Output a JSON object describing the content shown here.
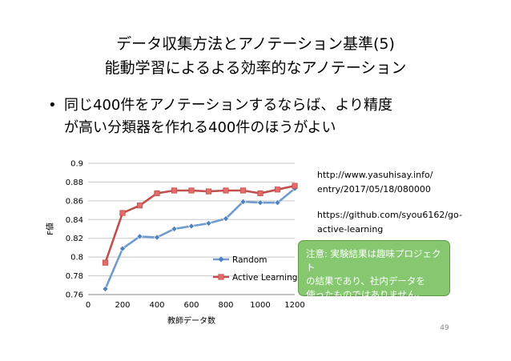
{
  "slide": {
    "title_line1": "データ収集方法とアノテーション基準(5)",
    "title_line2": "能動学習によるよる効率的なアノテーション",
    "bullet_symbol": "•",
    "bullet_line1": "同じ400件をアノテーションするならば、より精度",
    "bullet_line2": "が高い分類器を作れる400件のほうがよい",
    "link1_line1": "http://www.yasuhisay.info/",
    "link1_line2": "entry/2017/05/18/080000",
    "link2_line1": "https://github.com/syou6162/go-",
    "link2_line2": "active-learning",
    "note_line1": "注意: 実験結果は趣味プロジェクト",
    "note_line2": "の結果であり、社内データを",
    "note_line3": "使ったものではありません。",
    "page_number": "49"
  },
  "colors": {
    "random": "#6f9bd1",
    "random_marker": "#4f81bd",
    "active": "#c0504d",
    "active_marker": "#e46c6a",
    "callout_bg": "#86c86f"
  },
  "chart_data": {
    "type": "line",
    "xlabel": "教師データ数",
    "ylabel": "F値",
    "xlim": [
      0,
      1200
    ],
    "ylim": [
      0.76,
      0.9
    ],
    "xticks": [
      "0",
      "200",
      "400",
      "600",
      "800",
      "1000",
      "1200"
    ],
    "yticks": [
      "0.76",
      "0.78",
      "0.8",
      "0.82",
      "0.84",
      "0.86",
      "0.88",
      "0.9"
    ],
    "grid": "horizontal",
    "legend": "right",
    "series": [
      {
        "name": "Random",
        "x": [
          100,
          200,
          300,
          400,
          500,
          600,
          700,
          800,
          900,
          1000,
          1100,
          1200
        ],
        "values": [
          0.766,
          0.809,
          0.822,
          0.821,
          0.83,
          0.833,
          0.836,
          0.841,
          0.859,
          0.858,
          0.858,
          0.873
        ]
      },
      {
        "name": "Active Learning",
        "x": [
          100,
          200,
          300,
          400,
          500,
          600,
          700,
          800,
          900,
          1000,
          1100,
          1200
        ],
        "values": [
          0.794,
          0.847,
          0.855,
          0.868,
          0.871,
          0.871,
          0.87,
          0.871,
          0.871,
          0.868,
          0.872,
          0.876
        ]
      }
    ]
  }
}
